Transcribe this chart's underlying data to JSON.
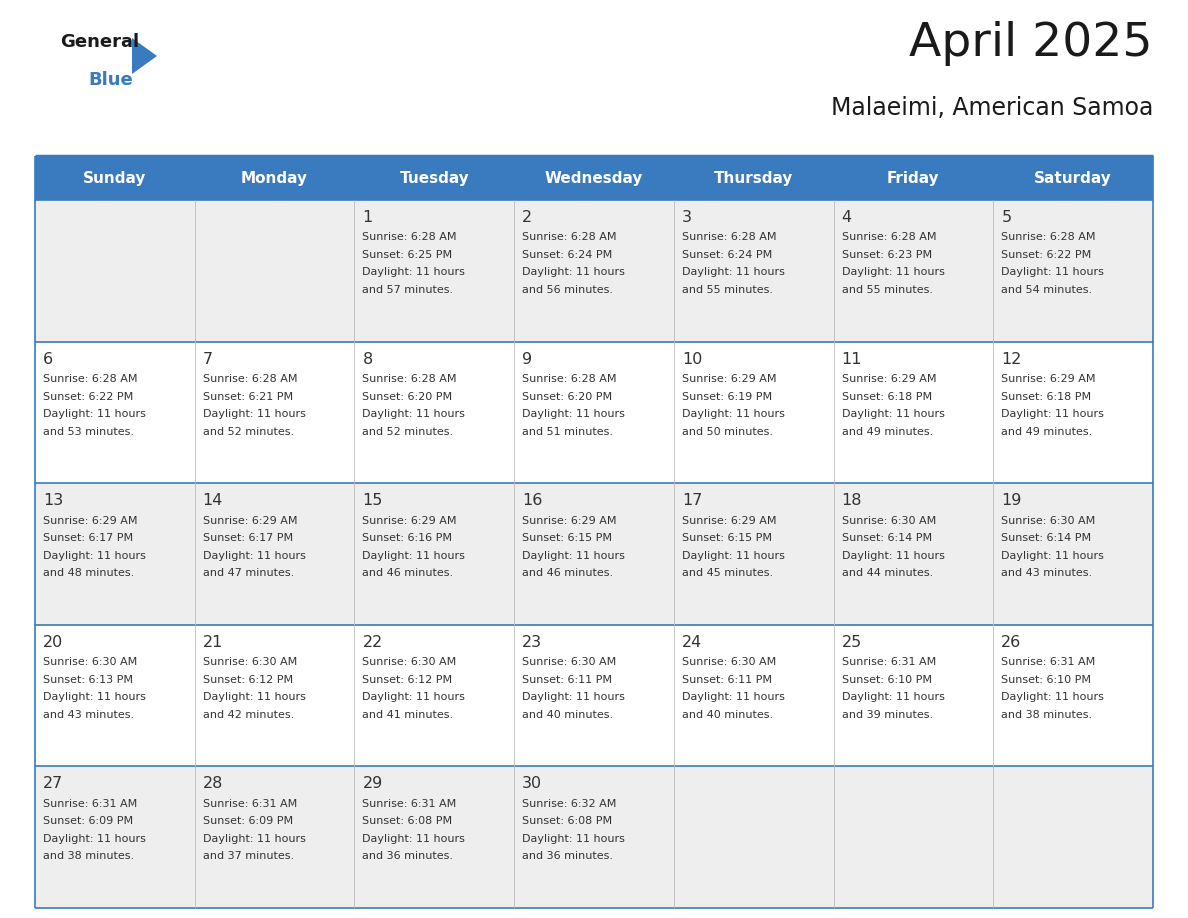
{
  "title": "April 2025",
  "subtitle": "Malaeimi, American Samoa",
  "header_bg": "#3a7abf",
  "header_text_color": "#ffffff",
  "cell_bg_odd": "#eeeeee",
  "cell_bg_even": "#ffffff",
  "border_color": "#3a7abf",
  "text_color": "#333333",
  "days_of_week": [
    "Sunday",
    "Monday",
    "Tuesday",
    "Wednesday",
    "Thursday",
    "Friday",
    "Saturday"
  ],
  "weeks": [
    [
      {
        "day": "",
        "sunrise": "",
        "sunset": "",
        "daylight": ""
      },
      {
        "day": "",
        "sunrise": "",
        "sunset": "",
        "daylight": ""
      },
      {
        "day": "1",
        "sunrise": "6:28 AM",
        "sunset": "6:25 PM",
        "daylight": "11 hours and 57 minutes."
      },
      {
        "day": "2",
        "sunrise": "6:28 AM",
        "sunset": "6:24 PM",
        "daylight": "11 hours and 56 minutes."
      },
      {
        "day": "3",
        "sunrise": "6:28 AM",
        "sunset": "6:24 PM",
        "daylight": "11 hours and 55 minutes."
      },
      {
        "day": "4",
        "sunrise": "6:28 AM",
        "sunset": "6:23 PM",
        "daylight": "11 hours and 55 minutes."
      },
      {
        "day": "5",
        "sunrise": "6:28 AM",
        "sunset": "6:22 PM",
        "daylight": "11 hours and 54 minutes."
      }
    ],
    [
      {
        "day": "6",
        "sunrise": "6:28 AM",
        "sunset": "6:22 PM",
        "daylight": "11 hours and 53 minutes."
      },
      {
        "day": "7",
        "sunrise": "6:28 AM",
        "sunset": "6:21 PM",
        "daylight": "11 hours and 52 minutes."
      },
      {
        "day": "8",
        "sunrise": "6:28 AM",
        "sunset": "6:20 PM",
        "daylight": "11 hours and 52 minutes."
      },
      {
        "day": "9",
        "sunrise": "6:28 AM",
        "sunset": "6:20 PM",
        "daylight": "11 hours and 51 minutes."
      },
      {
        "day": "10",
        "sunrise": "6:29 AM",
        "sunset": "6:19 PM",
        "daylight": "11 hours and 50 minutes."
      },
      {
        "day": "11",
        "sunrise": "6:29 AM",
        "sunset": "6:18 PM",
        "daylight": "11 hours and 49 minutes."
      },
      {
        "day": "12",
        "sunrise": "6:29 AM",
        "sunset": "6:18 PM",
        "daylight": "11 hours and 49 minutes."
      }
    ],
    [
      {
        "day": "13",
        "sunrise": "6:29 AM",
        "sunset": "6:17 PM",
        "daylight": "11 hours and 48 minutes."
      },
      {
        "day": "14",
        "sunrise": "6:29 AM",
        "sunset": "6:17 PM",
        "daylight": "11 hours and 47 minutes."
      },
      {
        "day": "15",
        "sunrise": "6:29 AM",
        "sunset": "6:16 PM",
        "daylight": "11 hours and 46 minutes."
      },
      {
        "day": "16",
        "sunrise": "6:29 AM",
        "sunset": "6:15 PM",
        "daylight": "11 hours and 46 minutes."
      },
      {
        "day": "17",
        "sunrise": "6:29 AM",
        "sunset": "6:15 PM",
        "daylight": "11 hours and 45 minutes."
      },
      {
        "day": "18",
        "sunrise": "6:30 AM",
        "sunset": "6:14 PM",
        "daylight": "11 hours and 44 minutes."
      },
      {
        "day": "19",
        "sunrise": "6:30 AM",
        "sunset": "6:14 PM",
        "daylight": "11 hours and 43 minutes."
      }
    ],
    [
      {
        "day": "20",
        "sunrise": "6:30 AM",
        "sunset": "6:13 PM",
        "daylight": "11 hours and 43 minutes."
      },
      {
        "day": "21",
        "sunrise": "6:30 AM",
        "sunset": "6:12 PM",
        "daylight": "11 hours and 42 minutes."
      },
      {
        "day": "22",
        "sunrise": "6:30 AM",
        "sunset": "6:12 PM",
        "daylight": "11 hours and 41 minutes."
      },
      {
        "day": "23",
        "sunrise": "6:30 AM",
        "sunset": "6:11 PM",
        "daylight": "11 hours and 40 minutes."
      },
      {
        "day": "24",
        "sunrise": "6:30 AM",
        "sunset": "6:11 PM",
        "daylight": "11 hours and 40 minutes."
      },
      {
        "day": "25",
        "sunrise": "6:31 AM",
        "sunset": "6:10 PM",
        "daylight": "11 hours and 39 minutes."
      },
      {
        "day": "26",
        "sunrise": "6:31 AM",
        "sunset": "6:10 PM",
        "daylight": "11 hours and 38 minutes."
      }
    ],
    [
      {
        "day": "27",
        "sunrise": "6:31 AM",
        "sunset": "6:09 PM",
        "daylight": "11 hours and 38 minutes."
      },
      {
        "day": "28",
        "sunrise": "6:31 AM",
        "sunset": "6:09 PM",
        "daylight": "11 hours and 37 minutes."
      },
      {
        "day": "29",
        "sunrise": "6:31 AM",
        "sunset": "6:08 PM",
        "daylight": "11 hours and 36 minutes."
      },
      {
        "day": "30",
        "sunrise": "6:32 AM",
        "sunset": "6:08 PM",
        "daylight": "11 hours and 36 minutes."
      },
      {
        "day": "",
        "sunrise": "",
        "sunset": "",
        "daylight": ""
      },
      {
        "day": "",
        "sunrise": "",
        "sunset": "",
        "daylight": ""
      },
      {
        "day": "",
        "sunrise": "",
        "sunset": "",
        "daylight": ""
      }
    ]
  ]
}
